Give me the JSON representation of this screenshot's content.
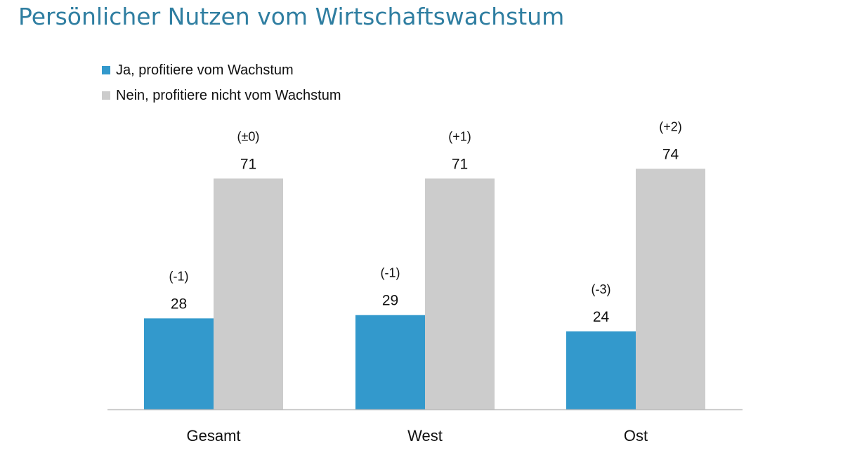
{
  "chart_data": {
    "type": "bar",
    "title": "Persönlicher Nutzen vom Wirtschaftswachstum",
    "categories": [
      "Gesamt",
      "West",
      "Ost"
    ],
    "series": [
      {
        "name": "Ja, profitiere vom Wachstum",
        "color": "#3399cc",
        "values": [
          28,
          29,
          24
        ],
        "value_labels": [
          "28",
          "29",
          "24"
        ],
        "change_labels": [
          "(-1)",
          "(-1)",
          "(-3)"
        ]
      },
      {
        "name": "Nein, profitiere nicht vom Wachstum",
        "color": "#cccccc",
        "values": [
          71,
          71,
          74
        ],
        "value_labels": [
          "71",
          "71",
          "74"
        ],
        "change_labels": [
          "(±0)",
          "(+1)",
          "(+2)"
        ]
      }
    ],
    "xlabel": "",
    "ylabel": "",
    "ylim": [
      0,
      100
    ],
    "grid": false,
    "legend_position": "top-left"
  }
}
